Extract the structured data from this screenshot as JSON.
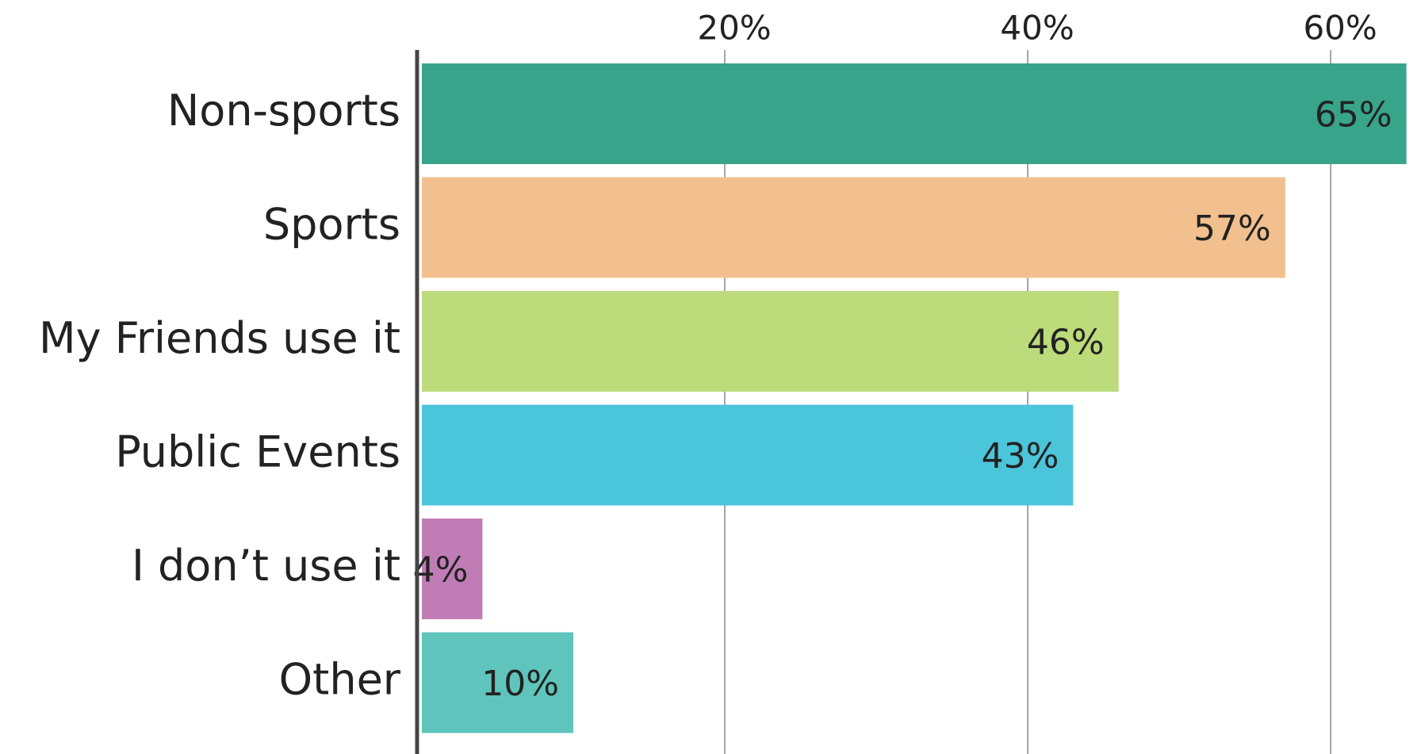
{
  "chart_data": {
    "type": "bar",
    "orientation": "horizontal",
    "categories": [
      "Non-sports",
      "Sports",
      "My Friends use it",
      "Public Events",
      "I don’t use it",
      "Other"
    ],
    "values": [
      65,
      57,
      46,
      43,
      4,
      10
    ],
    "value_labels": [
      "65%",
      "57%",
      "46%",
      "43%",
      "4%",
      "10%"
    ],
    "colors": [
      "#38a58a",
      "#f2c08e",
      "#bcdb7a",
      "#4bc5da",
      "#c07db5",
      "#5fc4bc"
    ],
    "xlim": [
      0,
      65.7
    ],
    "xticks": [
      {
        "value": 20,
        "label": "20%"
      },
      {
        "value": 40,
        "label": "40%"
      },
      {
        "value": 60,
        "label": "60%"
      }
    ],
    "grid": true
  }
}
